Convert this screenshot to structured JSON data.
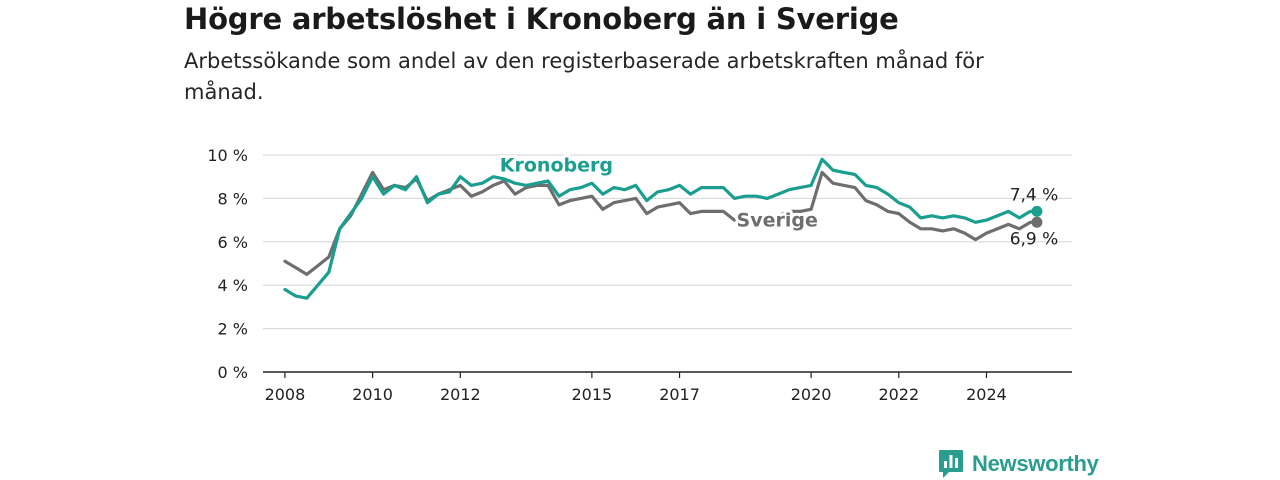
{
  "title": "Högre arbetslöshet i Kronoberg än i Sverige",
  "subtitle": "Arbetssökande som andel av den registerbaserade arbetskraften månad för månad.",
  "logo": {
    "text": "Newsworthy",
    "icon": "bar-chart-speech-bubble-icon",
    "color": "#2a9d8f"
  },
  "chart_data": {
    "type": "line",
    "title": "Högre arbetslöshet i Kronoberg än i Sverige",
    "subtitle": "Arbetssökande som andel av den registerbaserade arbetskraften månad för månad.",
    "xlabel": "",
    "ylabel": "",
    "ylim": [
      0,
      10
    ],
    "y_ticks": [
      0,
      2,
      4,
      6,
      8,
      10
    ],
    "y_tick_labels": [
      "0 %",
      "2 %",
      "4 %",
      "6 %",
      "8 %",
      "10 %"
    ],
    "x_ticks": [
      2008,
      2010,
      2012,
      2015,
      2017,
      2020,
      2022,
      2024
    ],
    "x_tick_labels": [
      "2008",
      "2010",
      "2012",
      "2015",
      "2017",
      "2020",
      "2022",
      "2024"
    ],
    "xlim": [
      2007.5,
      2025.95
    ],
    "grid": "horizontal",
    "legend": "direct-labels",
    "series": [
      {
        "name": "Kronoberg",
        "color": "#1a9e8f",
        "end_label": "7,4 %",
        "x": [
          2008.0,
          2008.25,
          2008.5,
          2008.75,
          2009.0,
          2009.25,
          2009.5,
          2009.75,
          2010.0,
          2010.25,
          2010.5,
          2010.75,
          2011.0,
          2011.25,
          2011.5,
          2011.75,
          2012.0,
          2012.25,
          2012.5,
          2012.75,
          2013.0,
          2013.25,
          2013.5,
          2013.75,
          2014.0,
          2014.25,
          2014.5,
          2014.75,
          2015.0,
          2015.25,
          2015.5,
          2015.75,
          2016.0,
          2016.25,
          2016.5,
          2016.75,
          2017.0,
          2017.25,
          2017.5,
          2017.75,
          2018.0,
          2018.25,
          2018.5,
          2018.75,
          2019.0,
          2019.25,
          2019.5,
          2019.75,
          2020.0,
          2020.25,
          2020.5,
          2020.75,
          2021.0,
          2021.25,
          2021.5,
          2021.75,
          2022.0,
          2022.25,
          2022.5,
          2022.75,
          2023.0,
          2023.25,
          2023.5,
          2023.75,
          2024.0,
          2024.25,
          2024.5,
          2024.75,
          2025.0,
          2025.15
        ],
        "values": [
          3.8,
          3.5,
          3.4,
          4.0,
          4.6,
          6.6,
          7.3,
          8.0,
          9.0,
          8.2,
          8.6,
          8.4,
          9.0,
          7.8,
          8.2,
          8.3,
          9.0,
          8.6,
          8.7,
          9.0,
          8.9,
          8.7,
          8.6,
          8.7,
          8.8,
          8.1,
          8.4,
          8.5,
          8.7,
          8.2,
          8.5,
          8.4,
          8.6,
          7.9,
          8.3,
          8.4,
          8.6,
          8.2,
          8.5,
          8.5,
          8.5,
          8.0,
          8.1,
          8.1,
          8.0,
          8.2,
          8.4,
          8.5,
          8.6,
          9.8,
          9.3,
          9.2,
          9.1,
          8.6,
          8.5,
          8.2,
          7.8,
          7.6,
          7.1,
          7.2,
          7.1,
          7.2,
          7.1,
          6.9,
          7.0,
          7.2,
          7.4,
          7.1,
          7.4,
          7.4
        ]
      },
      {
        "name": "Sverige",
        "color": "#6e6e6e",
        "end_label": "6,9 %",
        "x": [
          2008.0,
          2008.25,
          2008.5,
          2008.75,
          2009.0,
          2009.25,
          2009.5,
          2009.75,
          2010.0,
          2010.25,
          2010.5,
          2010.75,
          2011.0,
          2011.25,
          2011.5,
          2011.75,
          2012.0,
          2012.25,
          2012.5,
          2012.75,
          2013.0,
          2013.25,
          2013.5,
          2013.75,
          2014.0,
          2014.25,
          2014.5,
          2014.75,
          2015.0,
          2015.25,
          2015.5,
          2015.75,
          2016.0,
          2016.25,
          2016.5,
          2016.75,
          2017.0,
          2017.25,
          2017.5,
          2017.75,
          2018.0,
          2018.25,
          2018.5,
          2018.75,
          2019.0,
          2019.25,
          2019.5,
          2019.75,
          2020.0,
          2020.25,
          2020.5,
          2020.75,
          2021.0,
          2021.25,
          2021.5,
          2021.75,
          2022.0,
          2022.25,
          2022.5,
          2022.75,
          2023.0,
          2023.25,
          2023.5,
          2023.75,
          2024.0,
          2024.25,
          2024.5,
          2024.75,
          2025.0,
          2025.15
        ],
        "values": [
          5.1,
          4.8,
          4.5,
          4.9,
          5.3,
          6.6,
          7.2,
          8.2,
          9.2,
          8.4,
          8.6,
          8.5,
          8.9,
          7.9,
          8.2,
          8.4,
          8.6,
          8.1,
          8.3,
          8.6,
          8.8,
          8.2,
          8.5,
          8.6,
          8.6,
          7.7,
          7.9,
          8.0,
          8.1,
          7.5,
          7.8,
          7.9,
          8.0,
          7.3,
          7.6,
          7.7,
          7.8,
          7.3,
          7.4,
          7.4,
          7.4,
          7.0,
          7.1,
          7.1,
          7.0,
          7.2,
          7.4,
          7.4,
          7.5,
          9.2,
          8.7,
          8.6,
          8.5,
          7.9,
          7.7,
          7.4,
          7.3,
          6.9,
          6.6,
          6.6,
          6.5,
          6.6,
          6.4,
          6.1,
          6.4,
          6.6,
          6.8,
          6.6,
          6.9,
          6.9
        ]
      }
    ]
  }
}
